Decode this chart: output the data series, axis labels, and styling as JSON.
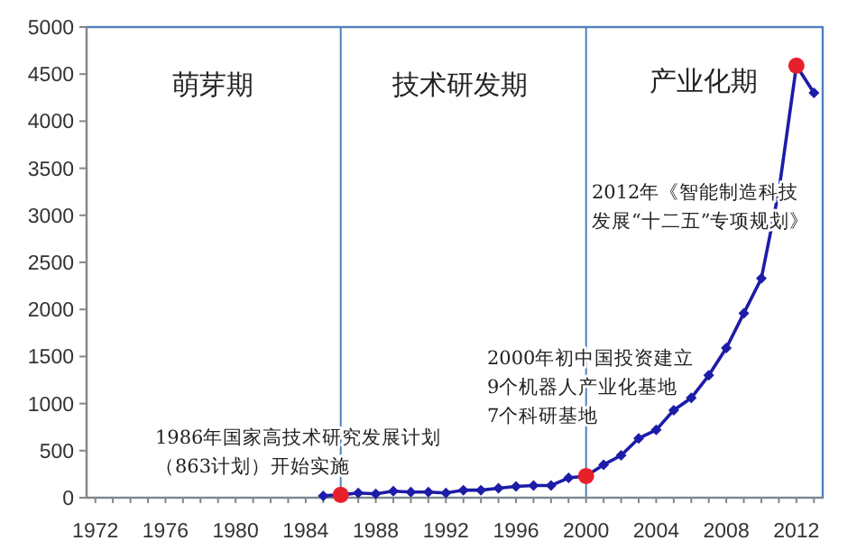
{
  "chart_data": {
    "type": "line",
    "x": [
      1985,
      1986,
      1987,
      1988,
      1989,
      1990,
      1991,
      1992,
      1993,
      1994,
      1995,
      1996,
      1997,
      1998,
      1999,
      2000,
      2001,
      2002,
      2003,
      2004,
      2005,
      2006,
      2007,
      2008,
      2009,
      2010,
      2011,
      2012,
      2013
    ],
    "series": [
      {
        "color": "#1c1ca8",
        "values": [
          20,
          30,
          50,
          40,
          70,
          60,
          60,
          50,
          80,
          80,
          100,
          120,
          130,
          130,
          210,
          230,
          350,
          450,
          630,
          720,
          930,
          1060,
          1300,
          1590,
          1960,
          2330,
          3260,
          4590,
          4300
        ]
      },
      {
        "type": "scatter",
        "marker": "circle",
        "color": "#e8202a",
        "x": [
          1986,
          2000,
          2012
        ],
        "values": [
          30,
          230,
          4590
        ]
      }
    ],
    "xlim": [
      1971.5,
      2013.5
    ],
    "ylim": [
      0,
      5000
    ],
    "xticks": [
      1972,
      1976,
      1980,
      1984,
      1988,
      1992,
      1996,
      2000,
      2004,
      2008,
      2012
    ],
    "yticks": [
      0,
      500,
      1000,
      1500,
      2000,
      2500,
      3000,
      3500,
      4000,
      4500,
      5000
    ],
    "grid": false,
    "marker": "diamond",
    "line_style": "solid",
    "ref_lines": [
      {
        "axis": "x",
        "value": 1986,
        "color": "#4f81bd"
      },
      {
        "axis": "x",
        "value": 2000,
        "color": "#4f81bd"
      }
    ],
    "annotations": [
      "萌芽期",
      "技术研发期",
      "产业化期",
      "1986年国家高技术研究发展计划（863计划）开始实施",
      "2000年初中国投资建立9个机器人产业化基地7个科研基地",
      "2012年《智能制造科技发展“十二五”专项规划》"
    ]
  }
}
